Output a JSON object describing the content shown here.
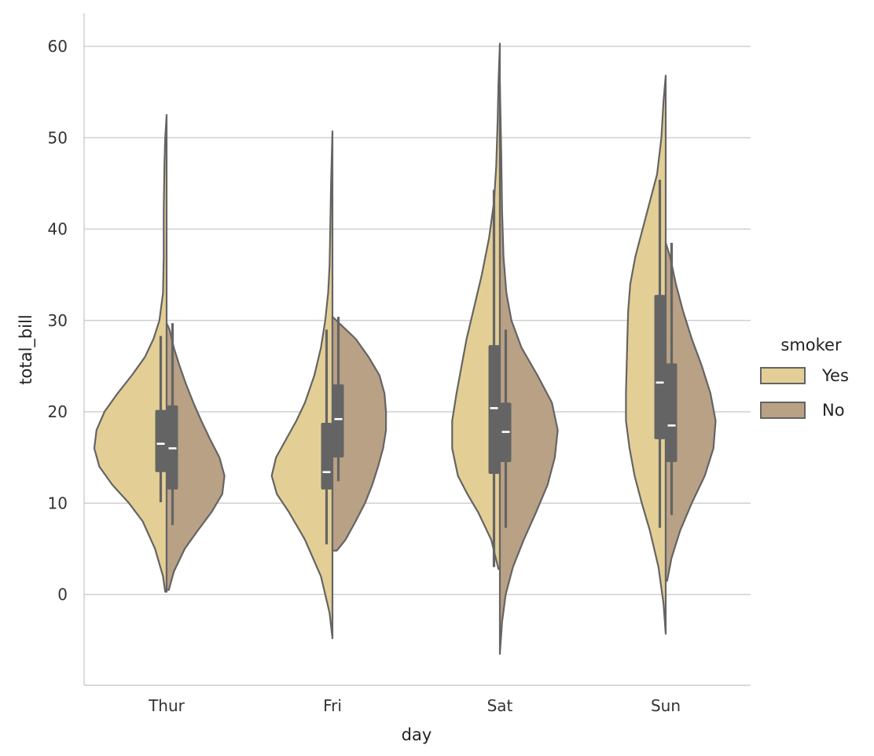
{
  "chart_data": {
    "type": "violin",
    "split": true,
    "xlabel": "day",
    "ylabel": "total_bill",
    "categories": [
      "Thur",
      "Fri",
      "Sat",
      "Sun"
    ],
    "ylim": [
      -10,
      64
    ],
    "yticks": [
      0,
      10,
      20,
      30,
      40,
      50,
      60
    ],
    "grid": "horizontal",
    "legend": {
      "title": "smoker",
      "placement": "center-right",
      "entries": [
        {
          "label": "Yes",
          "color": "#e3cf96"
        },
        {
          "label": "No",
          "color": "#b9a185"
        }
      ]
    },
    "outline_color": "#646464",
    "series": [
      {
        "name": "Yes",
        "side": "left",
        "color": "#e3cf96",
        "violins": [
          {
            "category": "Thur",
            "y_min": 0.3,
            "y_max": 52.5,
            "q1": 13.4,
            "median": 16.5,
            "q3": 20.2,
            "whisker_low": 10.1,
            "whisker_high": 28.3,
            "density": [
              [
                0.3,
                0.02
              ],
              [
                2,
                0.05
              ],
              [
                5,
                0.16
              ],
              [
                8,
                0.33
              ],
              [
                10,
                0.52
              ],
              [
                12,
                0.75
              ],
              [
                14,
                0.93
              ],
              [
                16,
                1.0
              ],
              [
                18,
                0.97
              ],
              [
                20,
                0.86
              ],
              [
                22,
                0.68
              ],
              [
                24,
                0.48
              ],
              [
                26,
                0.3
              ],
              [
                28,
                0.18
              ],
              [
                30,
                0.1
              ],
              [
                33,
                0.05
              ],
              [
                37,
                0.04
              ],
              [
                42,
                0.04
              ],
              [
                47,
                0.03
              ],
              [
                50,
                0.02
              ],
              [
                52.5,
                0.0
              ]
            ]
          },
          {
            "category": "Fri",
            "y_min": -4.8,
            "y_max": 50.7,
            "q1": 11.5,
            "median": 13.4,
            "q3": 18.8,
            "whisker_low": 5.5,
            "whisker_high": 29.0,
            "density": [
              [
                -4.8,
                0.0
              ],
              [
                -2,
                0.04
              ],
              [
                2,
                0.16
              ],
              [
                6,
                0.38
              ],
              [
                9,
                0.6
              ],
              [
                11,
                0.77
              ],
              [
                13,
                0.84
              ],
              [
                15,
                0.78
              ],
              [
                17,
                0.64
              ],
              [
                19,
                0.5
              ],
              [
                21,
                0.38
              ],
              [
                24,
                0.25
              ],
              [
                27,
                0.16
              ],
              [
                30,
                0.1
              ],
              [
                33,
                0.06
              ],
              [
                36,
                0.04
              ],
              [
                40,
                0.03
              ],
              [
                45,
                0.02
              ],
              [
                50.7,
                0.0
              ]
            ]
          },
          {
            "category": "Sat",
            "y_min": 2.8,
            "y_max": 60.3,
            "q1": 13.2,
            "median": 20.4,
            "q3": 27.3,
            "whisker_low": 3.0,
            "whisker_high": 44.3,
            "density": [
              [
                2.8,
                0.02
              ],
              [
                6,
                0.12
              ],
              [
                9,
                0.3
              ],
              [
                11,
                0.45
              ],
              [
                13,
                0.58
              ],
              [
                16,
                0.66
              ],
              [
                19,
                0.66
              ],
              [
                22,
                0.6
              ],
              [
                25,
                0.53
              ],
              [
                28,
                0.46
              ],
              [
                31,
                0.37
              ],
              [
                35,
                0.25
              ],
              [
                39,
                0.15
              ],
              [
                43,
                0.08
              ],
              [
                47,
                0.05
              ],
              [
                52,
                0.03
              ],
              [
                56,
                0.02
              ],
              [
                60.3,
                0.0
              ]
            ]
          },
          {
            "category": "Sun",
            "y_min": -4.3,
            "y_max": 56.8,
            "q1": 17.0,
            "median": 23.2,
            "q3": 32.8,
            "whisker_low": 7.3,
            "whisker_high": 45.4,
            "density": [
              [
                -4.3,
                0.0
              ],
              [
                -1,
                0.03
              ],
              [
                3,
                0.1
              ],
              [
                7,
                0.22
              ],
              [
                10,
                0.33
              ],
              [
                13,
                0.43
              ],
              [
                16,
                0.5
              ],
              [
                19,
                0.55
              ],
              [
                22,
                0.55
              ],
              [
                25,
                0.54
              ],
              [
                28,
                0.53
              ],
              [
                31,
                0.52
              ],
              [
                34,
                0.49
              ],
              [
                37,
                0.42
              ],
              [
                40,
                0.32
              ],
              [
                43,
                0.22
              ],
              [
                46,
                0.12
              ],
              [
                50,
                0.06
              ],
              [
                54,
                0.03
              ],
              [
                56.8,
                0.0
              ]
            ]
          }
        ]
      },
      {
        "name": "No",
        "side": "right",
        "color": "#b9a185",
        "violins": [
          {
            "category": "Thur",
            "y_min": 0.5,
            "y_max": 29.7,
            "q1": 11.5,
            "median": 16.0,
            "q3": 20.7,
            "whisker_low": 7.6,
            "whisker_high": 29.7,
            "density": [
              [
                0.5,
                0.03
              ],
              [
                2.5,
                0.1
              ],
              [
                5,
                0.25
              ],
              [
                7,
                0.43
              ],
              [
                9,
                0.62
              ],
              [
                11,
                0.77
              ],
              [
                13,
                0.8
              ],
              [
                15,
                0.73
              ],
              [
                17,
                0.6
              ],
              [
                19,
                0.48
              ],
              [
                21,
                0.37
              ],
              [
                23,
                0.27
              ],
              [
                25,
                0.18
              ],
              [
                27,
                0.1
              ],
              [
                29,
                0.04
              ],
              [
                29.7,
                0.0
              ]
            ]
          },
          {
            "category": "Fri",
            "y_min": 4.8,
            "y_max": 30.4,
            "q1": 15.0,
            "median": 19.2,
            "q3": 23.0,
            "whisker_low": 12.4,
            "whisker_high": 30.4,
            "density": [
              [
                4.8,
                0.06
              ],
              [
                6,
                0.18
              ],
              [
                8,
                0.32
              ],
              [
                10,
                0.45
              ],
              [
                12,
                0.55
              ],
              [
                14,
                0.63
              ],
              [
                16,
                0.7
              ],
              [
                18,
                0.74
              ],
              [
                20,
                0.74
              ],
              [
                22,
                0.72
              ],
              [
                24,
                0.65
              ],
              [
                26,
                0.5
              ],
              [
                28,
                0.32
              ],
              [
                29.5,
                0.12
              ],
              [
                30.4,
                0.0
              ]
            ]
          },
          {
            "category": "Sat",
            "y_min": -6.5,
            "y_max": 56.0,
            "q1": 14.5,
            "median": 17.8,
            "q3": 21.0,
            "whisker_low": 7.3,
            "whisker_high": 29.0,
            "density": [
              [
                -6.5,
                0.0
              ],
              [
                -3,
                0.03
              ],
              [
                0,
                0.08
              ],
              [
                3,
                0.18
              ],
              [
                6,
                0.33
              ],
              [
                9,
                0.5
              ],
              [
                12,
                0.66
              ],
              [
                15,
                0.76
              ],
              [
                18,
                0.8
              ],
              [
                21,
                0.72
              ],
              [
                24,
                0.52
              ],
              [
                27,
                0.3
              ],
              [
                30,
                0.16
              ],
              [
                33,
                0.09
              ],
              [
                37,
                0.05
              ],
              [
                42,
                0.03
              ],
              [
                48,
                0.02
              ],
              [
                56,
                0.0
              ]
            ]
          },
          {
            "category": "Sun",
            "y_min": 1.5,
            "y_max": 38.5,
            "q1": 14.5,
            "median": 18.5,
            "q3": 25.3,
            "whisker_low": 8.7,
            "whisker_high": 38.5,
            "density": [
              [
                1.5,
                0.02
              ],
              [
                4,
                0.08
              ],
              [
                7,
                0.2
              ],
              [
                10,
                0.36
              ],
              [
                13,
                0.54
              ],
              [
                16,
                0.66
              ],
              [
                19,
                0.69
              ],
              [
                22,
                0.62
              ],
              [
                25,
                0.5
              ],
              [
                28,
                0.36
              ],
              [
                31,
                0.24
              ],
              [
                34,
                0.14
              ],
              [
                37,
                0.06
              ],
              [
                38.5,
                0.0
              ]
            ]
          }
        ]
      }
    ]
  }
}
